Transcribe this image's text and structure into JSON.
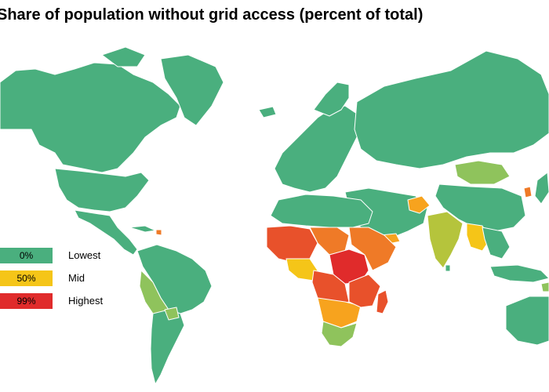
{
  "title": "Share of population without grid access (percent of total)",
  "colors": {
    "low": "#4aaf7e",
    "light_green": "#8fc35c",
    "yellow_green": "#b5c43c",
    "yellow": "#f5c518",
    "orange_light": "#f7a31e",
    "orange": "#ef7a27",
    "red_orange": "#e8512b",
    "red": "#e02b2b",
    "border": "#ffffff"
  },
  "legend": [
    {
      "value": "0%",
      "label": "Lowest",
      "color": "#4aaf7e"
    },
    {
      "value": "50%",
      "label": "Mid",
      "color": "#f5c518"
    },
    {
      "value": "99%",
      "label": "Highest",
      "color": "#e02b2b"
    }
  ]
}
